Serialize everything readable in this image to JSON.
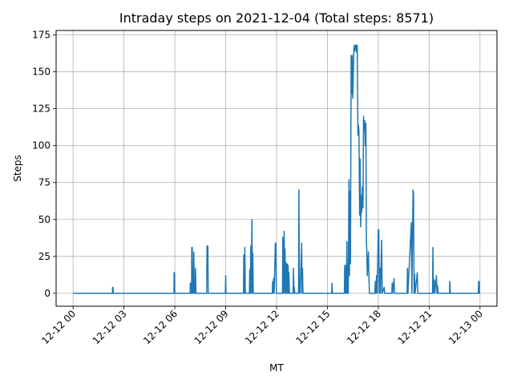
{
  "chart_data": {
    "type": "line",
    "title": "Intraday steps on 2021-12-04 (Total steps: 8571)",
    "xlabel": "MT",
    "ylabel": "Steps",
    "xlim_hours": [
      -1.0,
      25.0
    ],
    "ylim": [
      -8.75,
      178.0
    ],
    "x_ticks": [
      {
        "hour": 0,
        "label": "12-12 00"
      },
      {
        "hour": 3,
        "label": "12-12 03"
      },
      {
        "hour": 6,
        "label": "12-12 06"
      },
      {
        "hour": 9,
        "label": "12-12 09"
      },
      {
        "hour": 12,
        "label": "12-12 12"
      },
      {
        "hour": 15,
        "label": "12-12 15"
      },
      {
        "hour": 18,
        "label": "12-12 18"
      },
      {
        "hour": 21,
        "label": "12-12 21"
      },
      {
        "hour": 24,
        "label": "12-13 00"
      }
    ],
    "y_ticks": [
      0,
      25,
      50,
      75,
      100,
      125,
      150,
      175
    ],
    "grid": true,
    "line_color": "#1f77b4",
    "series": [
      {
        "points": [
          [
            0,
            0
          ],
          [
            2.32,
            0
          ],
          [
            2.33,
            4
          ],
          [
            2.36,
            4
          ],
          [
            2.37,
            0
          ],
          [
            5.95,
            0
          ],
          [
            5.96,
            14
          ],
          [
            5.99,
            14
          ],
          [
            6.0,
            0
          ],
          [
            6.9,
            0
          ],
          [
            6.92,
            7
          ],
          [
            6.94,
            0
          ],
          [
            6.99,
            0
          ],
          [
            7.0,
            31
          ],
          [
            7.03,
            31
          ],
          [
            7.05,
            0
          ],
          [
            7.1,
            0
          ],
          [
            7.12,
            28
          ],
          [
            7.15,
            0
          ],
          [
            7.2,
            0
          ],
          [
            7.22,
            17
          ],
          [
            7.25,
            0
          ],
          [
            7.88,
            0
          ],
          [
            7.9,
            32
          ],
          [
            7.95,
            32
          ],
          [
            7.97,
            0
          ],
          [
            8.98,
            0
          ],
          [
            9.0,
            12
          ],
          [
            9.02,
            0
          ],
          [
            10.05,
            0
          ],
          [
            10.07,
            26
          ],
          [
            10.1,
            0
          ],
          [
            10.13,
            31
          ],
          [
            10.16,
            0
          ],
          [
            10.4,
            0
          ],
          [
            10.42,
            16
          ],
          [
            10.45,
            0
          ],
          [
            10.48,
            32
          ],
          [
            10.5,
            0
          ],
          [
            10.55,
            50
          ],
          [
            10.58,
            0
          ],
          [
            10.6,
            27
          ],
          [
            10.63,
            0
          ],
          [
            11.75,
            0
          ],
          [
            11.77,
            8
          ],
          [
            11.8,
            0
          ],
          [
            11.83,
            10
          ],
          [
            11.86,
            0
          ],
          [
            11.93,
            34
          ],
          [
            11.96,
            34
          ],
          [
            11.99,
            0
          ],
          [
            12.35,
            0
          ],
          [
            12.37,
            38
          ],
          [
            12.4,
            0
          ],
          [
            12.45,
            42
          ],
          [
            12.48,
            0
          ],
          [
            12.5,
            30
          ],
          [
            12.53,
            0
          ],
          [
            12.55,
            21
          ],
          [
            12.58,
            0
          ],
          [
            12.62,
            20
          ],
          [
            12.65,
            0
          ],
          [
            12.68,
            19
          ],
          [
            12.71,
            0
          ],
          [
            12.73,
            14
          ],
          [
            12.76,
            0
          ],
          [
            12.98,
            0
          ],
          [
            13.0,
            17
          ],
          [
            13.03,
            0
          ],
          [
            13.05,
            4
          ],
          [
            13.07,
            0
          ],
          [
            13.3,
            0
          ],
          [
            13.32,
            70
          ],
          [
            13.35,
            0
          ],
          [
            13.38,
            10
          ],
          [
            13.4,
            0
          ],
          [
            13.48,
            34
          ],
          [
            13.51,
            0
          ],
          [
            13.53,
            17
          ],
          [
            13.56,
            0
          ],
          [
            15.25,
            0
          ],
          [
            15.27,
            7
          ],
          [
            15.3,
            0
          ],
          [
            16.0,
            0
          ],
          [
            16.02,
            19
          ],
          [
            16.05,
            0
          ],
          [
            16.1,
            19
          ],
          [
            16.12,
            0
          ],
          [
            16.15,
            35
          ],
          [
            16.18,
            0
          ],
          [
            16.2,
            19
          ],
          [
            16.23,
            0
          ],
          [
            16.27,
            77
          ],
          [
            16.3,
            12
          ],
          [
            16.33,
            69
          ],
          [
            16.36,
            20
          ],
          [
            16.4,
            161
          ],
          [
            16.43,
            135
          ],
          [
            16.46,
            161
          ],
          [
            16.5,
            132
          ],
          [
            16.53,
            150
          ],
          [
            16.56,
            166
          ],
          [
            16.6,
            168
          ],
          [
            16.63,
            164
          ],
          [
            16.66,
            168
          ],
          [
            16.7,
            168
          ],
          [
            16.73,
            163
          ],
          [
            16.76,
            168
          ],
          [
            16.8,
            107
          ],
          [
            16.83,
            114
          ],
          [
            16.86,
            110
          ],
          [
            16.9,
            53
          ],
          [
            16.93,
            91
          ],
          [
            16.96,
            45
          ],
          [
            17.0,
            66
          ],
          [
            17.03,
            55
          ],
          [
            17.06,
            72
          ],
          [
            17.1,
            58
          ],
          [
            17.13,
            120
          ],
          [
            17.16,
            110
          ],
          [
            17.2,
            117
          ],
          [
            17.23,
            100
          ],
          [
            17.27,
            115
          ],
          [
            17.3,
            35
          ],
          [
            17.32,
            30
          ],
          [
            17.35,
            12
          ],
          [
            17.38,
            20
          ],
          [
            17.42,
            28
          ],
          [
            17.45,
            10
          ],
          [
            17.48,
            0
          ],
          [
            17.8,
            0
          ],
          [
            17.82,
            8
          ],
          [
            17.85,
            0
          ],
          [
            17.9,
            12
          ],
          [
            17.93,
            0
          ],
          [
            18.0,
            43
          ],
          [
            18.03,
            43
          ],
          [
            18.06,
            0
          ],
          [
            18.1,
            17
          ],
          [
            18.13,
            0
          ],
          [
            18.2,
            36
          ],
          [
            18.23,
            0
          ],
          [
            18.35,
            4
          ],
          [
            18.38,
            0
          ],
          [
            18.8,
            0
          ],
          [
            18.82,
            7
          ],
          [
            18.85,
            0
          ],
          [
            18.93,
            10
          ],
          [
            18.96,
            0
          ],
          [
            19.7,
            0
          ],
          [
            19.72,
            17
          ],
          [
            19.75,
            0
          ],
          [
            19.95,
            48
          ],
          [
            19.98,
            0
          ],
          [
            20.05,
            70
          ],
          [
            20.08,
            68
          ],
          [
            20.11,
            0
          ],
          [
            20.14,
            13
          ],
          [
            20.17,
            0
          ],
          [
            20.3,
            14
          ],
          [
            20.33,
            0
          ],
          [
            21.2,
            0
          ],
          [
            21.22,
            31
          ],
          [
            21.25,
            0
          ],
          [
            21.3,
            9
          ],
          [
            21.33,
            0
          ],
          [
            21.43,
            12
          ],
          [
            21.46,
            0
          ],
          [
            21.5,
            5
          ],
          [
            21.53,
            0
          ],
          [
            22.2,
            0
          ],
          [
            22.22,
            8
          ],
          [
            22.25,
            0
          ],
          [
            23.9,
            0
          ],
          [
            23.92,
            8
          ],
          [
            23.95,
            8
          ],
          [
            23.97,
            0
          ],
          [
            24.0,
            0
          ]
        ]
      }
    ]
  }
}
